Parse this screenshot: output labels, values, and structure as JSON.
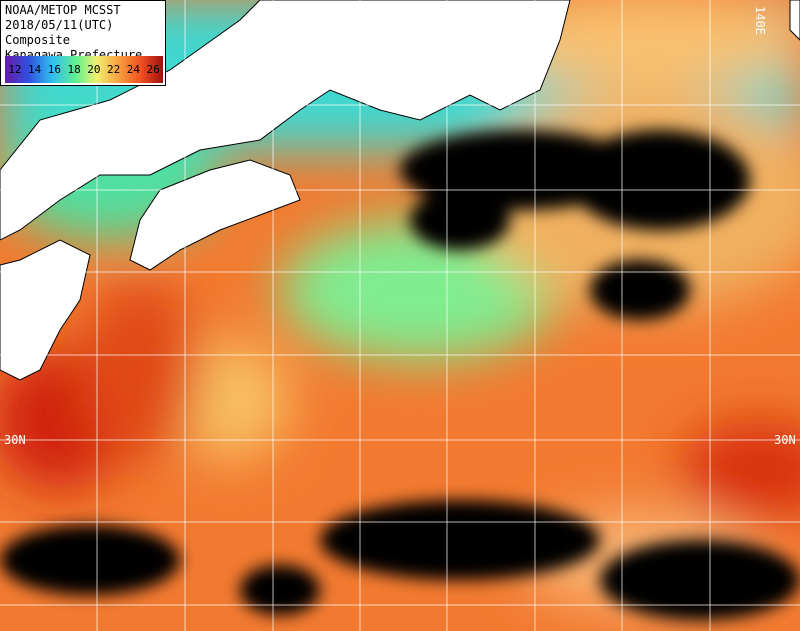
{
  "header": {
    "lines": [
      "NOAA/METOP MCSST",
      "2018/05/11(UTC) Composite",
      "Kanagawa Prefecture"
    ]
  },
  "legend": {
    "ticks": [
      12,
      14,
      16,
      18,
      20,
      22,
      24,
      26
    ]
  },
  "grid_labels": {
    "lat_left": "30N",
    "lat_right": "30N",
    "lon_top": "140E"
  }
}
